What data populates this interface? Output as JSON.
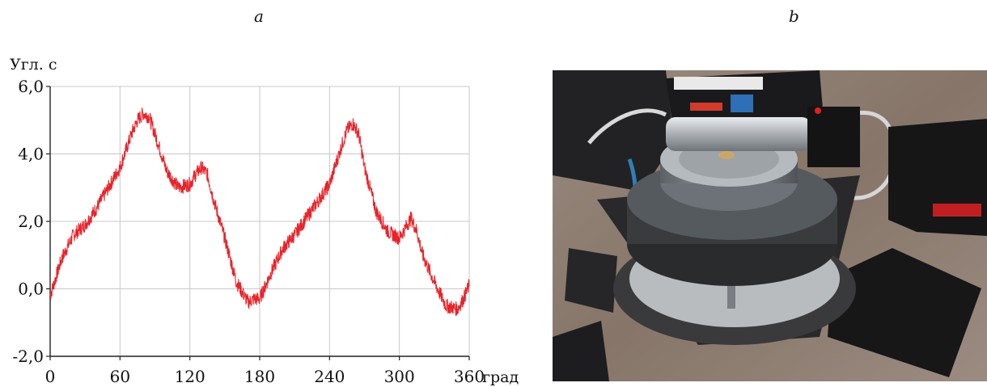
{
  "panels": {
    "a_label": "a",
    "b_label": "b"
  },
  "chart_data": {
    "type": "line",
    "title": "",
    "xlabel": "град",
    "ylabel": "Угл. с",
    "xlim": [
      0,
      360
    ],
    "ylim": [
      -2,
      6
    ],
    "x_ticks": [
      0,
      60,
      120,
      180,
      240,
      300,
      360
    ],
    "x_tick_labels": [
      "0",
      "60",
      "120",
      "180",
      "240",
      "300",
      "360"
    ],
    "y_ticks": [
      -2,
      0,
      2,
      4,
      6
    ],
    "y_tick_labels": [
      "-2,0",
      "0,0",
      "2,0",
      "4,0",
      "6,0"
    ],
    "grid": true,
    "series_color": "#e8232a",
    "series": [
      {
        "x": [
          0,
          10,
          20,
          30,
          40,
          50,
          60,
          70,
          75,
          80,
          85,
          90,
          100,
          110,
          120,
          125,
          130,
          135,
          140,
          150,
          160,
          170,
          175,
          180,
          190,
          200,
          210,
          220,
          230,
          240,
          250,
          255,
          260,
          265,
          270,
          280,
          290,
          300,
          305,
          310,
          315,
          320,
          330,
          340,
          350,
          355,
          360
        ],
        "y": [
          -0.2,
          0.9,
          1.6,
          1.9,
          2.4,
          3.0,
          3.6,
          4.6,
          5.0,
          5.2,
          5.1,
          4.6,
          3.5,
          3.0,
          3.1,
          3.4,
          3.6,
          3.4,
          2.7,
          1.5,
          0.2,
          -0.4,
          -0.3,
          -0.3,
          0.5,
          1.2,
          1.6,
          2.1,
          2.6,
          3.1,
          4.2,
          4.7,
          4.9,
          4.6,
          3.6,
          2.3,
          1.7,
          1.5,
          1.8,
          2.1,
          1.7,
          1.0,
          0.2,
          -0.5,
          -0.6,
          -0.3,
          0.1
        ]
      }
    ]
  },
  "photo": {
    "palette": {
      "floor": "#8a7b72",
      "table_dark": "#1c1c1e",
      "ring_gray": "#8d9297",
      "metal": "#c8ccd0",
      "red_led": "#d81d20",
      "cable": "#d9d9d9"
    }
  }
}
